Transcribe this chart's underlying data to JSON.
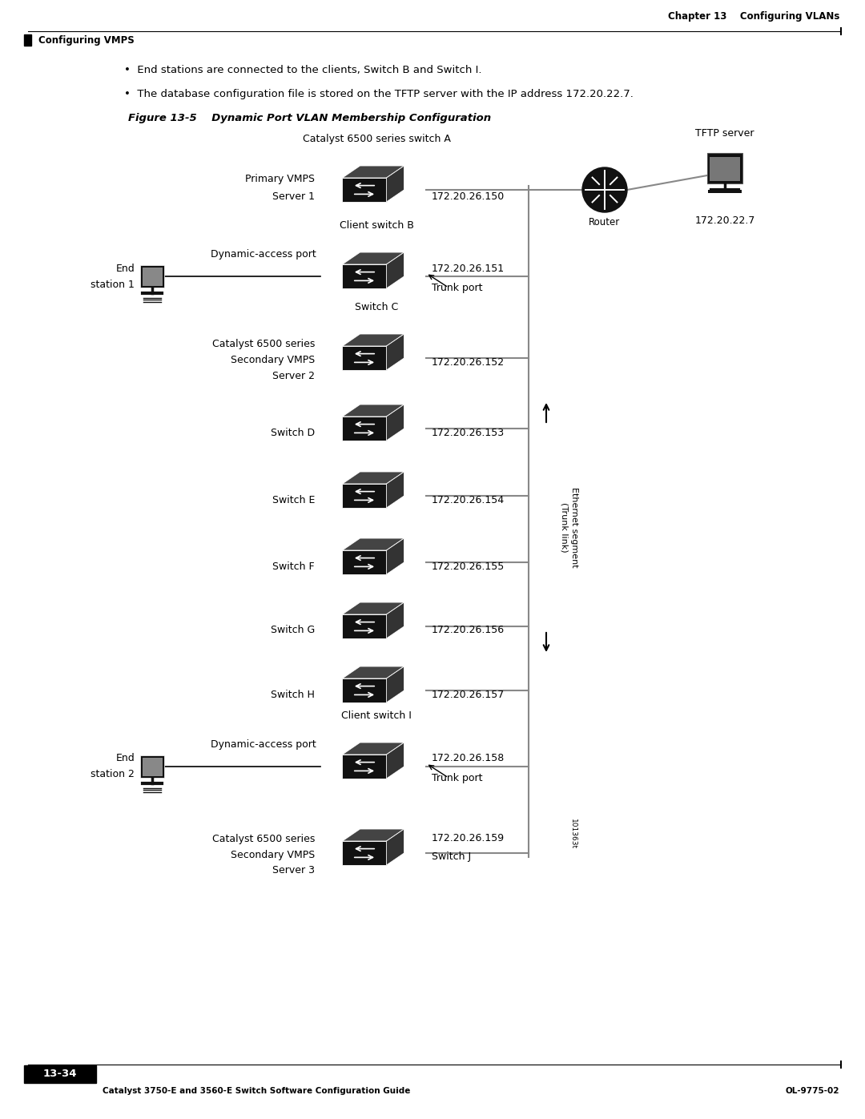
{
  "bg_color": "#ffffff",
  "page_width": 10.8,
  "page_height": 13.97,
  "header_text_right": "Chapter 13    Configuring VLANs",
  "header_text_left": "Configuring VMPS",
  "footer_text_left": "Catalyst 3750-E and 3560-E Switch Software Configuration Guide",
  "footer_text_right": "OL-9775-02",
  "footer_page": "13-34",
  "bullet1": "End stations are connected to the clients, Switch B and Switch I.",
  "bullet2": "The database configuration file is stored on the TFTP server with the IP address 172.20.22.7.",
  "figure_label": "Figure 13-5",
  "figure_title": "Dynamic Port VLAN Membership Configuration",
  "tftp_label": "TFTP server",
  "router_label": "Router",
  "router_ip": "172.20.22.7",
  "switch_A_label1": "Catalyst 6500 series switch A",
  "switch_A_label2": "Primary VMPS",
  "switch_A_label3": "Server 1",
  "switch_A_ip": "172.20.26.150",
  "client_B_label": "Client switch B",
  "client_B_ip": "172.20.26.151",
  "client_B_trunk": "Trunk port",
  "end_station1_label1": "End",
  "end_station1_label2": "station 1",
  "dynamic_access1": "Dynamic-access port",
  "switch_C_label1": "Catalyst 6500 series",
  "switch_C_label2": "Secondary VMPS",
  "switch_C_label3": "Server 2",
  "switch_C_name": "Switch C",
  "switch_C_ip": "172.20.26.152",
  "switch_D_name": "Switch D",
  "switch_D_ip": "172.20.26.153",
  "switch_E_name": "Switch E",
  "switch_E_ip": "172.20.26.154",
  "switch_F_name": "Switch F",
  "switch_F_ip": "172.20.26.155",
  "switch_G_name": "Switch G",
  "switch_G_ip": "172.20.26.156",
  "switch_H_name": "Switch H",
  "switch_H_ip": "172.20.26.157",
  "client_I_label": "Client switch I",
  "client_I_ip": "172.20.26.158",
  "client_I_trunk": "Trunk port",
  "end_station2_label1": "End",
  "end_station2_label2": "station 2",
  "dynamic_access2": "Dynamic-access port",
  "switch_J_label1": "Catalyst 6500 series",
  "switch_J_label2": "Secondary VMPS",
  "switch_J_label3": "Server 3",
  "switch_J_name": "Switch J",
  "switch_J_ip": "172.20.26.159",
  "ethernet_label1": "Ethernet segment",
  "ethernet_label2": "(Trunk link)",
  "diagram_id": "101363t",
  "line_color": "#888888",
  "switch_color_front": "#111111",
  "switch_color_top": "#444444",
  "switch_color_right": "#333333"
}
